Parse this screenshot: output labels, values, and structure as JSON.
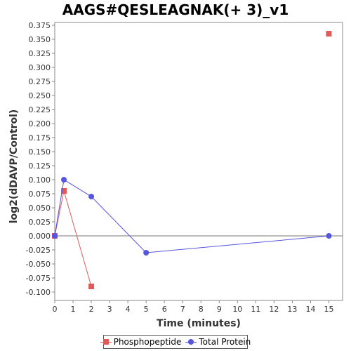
{
  "chart_data": {
    "type": "line",
    "title": "AAGS#QESLEAGNAK(+ 3)_v1",
    "xlabel": "Time (minutes)",
    "ylabel": "log2(dDAVP/Control)",
    "xlim": [
      0,
      15.75
    ],
    "ylim": [
      -0.115,
      0.38
    ],
    "xticks": [
      0,
      1,
      2,
      3,
      4,
      5,
      6,
      7,
      8,
      9,
      10,
      11,
      12,
      13,
      14,
      15
    ],
    "yticks": [
      -0.1,
      -0.075,
      -0.05,
      -0.025,
      0.0,
      0.025,
      0.05,
      0.075,
      0.1,
      0.125,
      0.15,
      0.175,
      0.2,
      0.225,
      0.25,
      0.275,
      0.3,
      0.325,
      0.35,
      0.375
    ],
    "ytick_labels": [
      "-0.100",
      "-0.075",
      "-0.050",
      "-0.025",
      "0.000",
      "0.025",
      "0.050",
      "0.075",
      "0.100",
      "0.125",
      "0.150",
      "0.175",
      "0.200",
      "0.225",
      "0.250",
      "0.275",
      "0.300",
      "0.325",
      "0.350",
      "0.375"
    ],
    "grid": false,
    "zero_line": true,
    "legend_position": "bottom",
    "series": [
      {
        "name": "Phosphopeptide",
        "color": "#e05a5a",
        "marker": "square",
        "segments": [
          [
            {
              "x": 0,
              "y": 0.0
            },
            {
              "x": 0.5,
              "y": 0.08
            },
            {
              "x": 2,
              "y": -0.09
            }
          ],
          [
            {
              "x": 15,
              "y": 0.36
            }
          ]
        ]
      },
      {
        "name": "Total Protein",
        "color": "#5555e0",
        "marker": "circle",
        "segments": [
          [
            {
              "x": 0,
              "y": 0.0
            },
            {
              "x": 0.5,
              "y": 0.1
            },
            {
              "x": 2,
              "y": 0.07
            },
            {
              "x": 5,
              "y": -0.03
            },
            {
              "x": 15,
              "y": 0.0
            }
          ]
        ]
      }
    ]
  }
}
